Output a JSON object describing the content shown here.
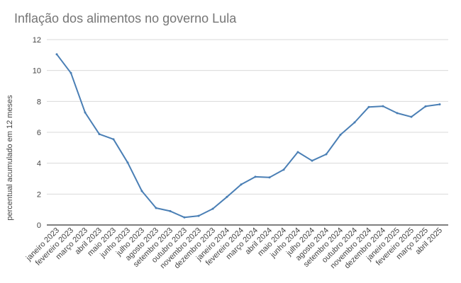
{
  "chart_data": {
    "type": "line",
    "title": "Inflação dos alimentos no governo Lula",
    "xlabel": "",
    "ylabel": "percentual acumulado em 12 meses",
    "ylim": [
      0,
      12
    ],
    "yticks": [
      0,
      2,
      4,
      6,
      8,
      10,
      12
    ],
    "grid": true,
    "legend": "none",
    "line_color": "#4a7fb5",
    "categories": [
      "janeiro 2023",
      "fevereiro 2023",
      "março 2023",
      "abril 2023",
      "maio 2023",
      "junho 2023",
      "julho 2023",
      "agosto 2023",
      "setembro 2023",
      "outubro 2023",
      "novembro 2023",
      "dezembro 2023",
      "janeiro 2024",
      "fevereiro 2024",
      "março 2024",
      "abril 2024",
      "maio 2024",
      "junho 2024",
      "julho 2024",
      "agosto 2024",
      "setembro 2024",
      "outubro 2024",
      "novembro 2024",
      "dezembro 2024",
      "janeiro 2025",
      "fevereiro 2025",
      "março 2025",
      "abril 2025"
    ],
    "values": [
      11.05,
      9.84,
      7.28,
      5.88,
      5.55,
      4.04,
      2.2,
      1.1,
      0.9,
      0.49,
      0.59,
      1.05,
      1.82,
      2.62,
      3.12,
      3.08,
      3.58,
      4.72,
      4.16,
      4.58,
      5.84,
      6.64,
      7.64,
      7.69,
      7.24,
      7.0,
      7.68,
      7.81
    ]
  }
}
